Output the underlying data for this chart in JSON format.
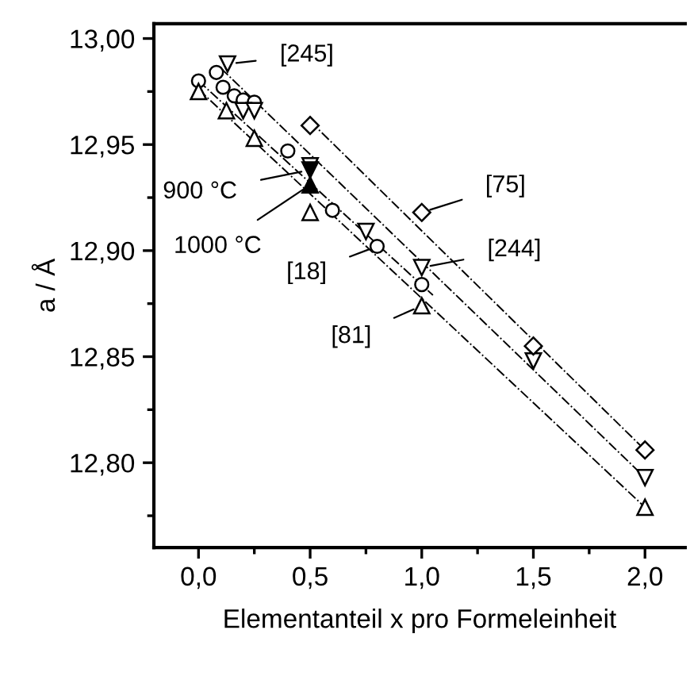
{
  "chart_data": {
    "type": "scatter",
    "xlabel": "Elementanteil x pro Formeleinheit",
    "ylabel": "a / Å",
    "xlim": [
      -0.2,
      2.18
    ],
    "ylim": [
      12.76,
      13.007
    ],
    "xticks": [
      {
        "value": 0,
        "label": "0,0"
      },
      {
        "value": 0.5,
        "label": "0,5"
      },
      {
        "value": 1.0,
        "label": "1,0"
      },
      {
        "value": 1.5,
        "label": "1,5"
      },
      {
        "value": 2.0,
        "label": "2,0"
      }
    ],
    "yticks": [
      {
        "value": 12.8,
        "label": "12,80"
      },
      {
        "value": 12.85,
        "label": "12,85"
      },
      {
        "value": 12.9,
        "label": "12,90"
      },
      {
        "value": 12.95,
        "label": "12,95"
      },
      {
        "value": 13.0,
        "label": "13,00"
      }
    ],
    "grid": false,
    "legend": false,
    "series": [
      {
        "marker": "circle",
        "color": "#ffffff",
        "x": [
          0,
          0.08,
          0.11,
          0.16,
          0.2,
          0.25,
          0.4,
          0.6,
          0.8,
          1.0
        ],
        "values": [
          12.98,
          12.984,
          12.977,
          12.973,
          12.971,
          12.97,
          12.947,
          12.919,
          12.902,
          12.884
        ]
      },
      {
        "marker": "triangle_down",
        "color": "#ffffff",
        "x": [
          0.13,
          0.2,
          0.25,
          0.5,
          0.75,
          1.0,
          1.5,
          2.0
        ],
        "values": [
          12.988,
          12.966,
          12.966,
          12.94,
          12.909,
          12.892,
          12.848,
          12.793
        ]
      },
      {
        "marker": "triangle",
        "color": "#ffffff",
        "x": [
          0,
          0.125,
          0.25,
          0.5,
          1.0,
          2.0
        ],
        "values": [
          12.975,
          12.966,
          12.953,
          12.918,
          12.874,
          12.779
        ]
      },
      {
        "marker": "diamond",
        "color": "#ffffff",
        "x": [
          0.5,
          1.0,
          1.5,
          2.0
        ],
        "values": [
          12.959,
          12.918,
          12.855,
          12.806
        ]
      },
      {
        "marker": "triangle_down",
        "color": "#000000",
        "x": [
          0.5
        ],
        "values": [
          12.938
        ]
      },
      {
        "marker": "triangle",
        "color": "#000000",
        "x": [
          0.5
        ],
        "values": [
          12.931
        ]
      },
      {
        "type": "line",
        "line_style": "dashdot",
        "color": "#000000",
        "x": [
          0.5,
          2.0
        ],
        "values": [
          12.961,
          12.806
        ]
      },
      {
        "type": "line",
        "line_style": "dashdot",
        "color": "#000000",
        "x": [
          0.1,
          2.0
        ],
        "values": [
          12.986,
          12.793
        ]
      },
      {
        "type": "line",
        "line_style": "dashdot",
        "color": "#000000",
        "x": [
          0,
          1.05
        ],
        "values": [
          12.98,
          12.879
        ]
      },
      {
        "type": "line",
        "line_style": "dashdot",
        "color": "#000000",
        "x": [
          0,
          2.0
        ],
        "values": [
          12.976,
          12.779
        ]
      }
    ],
    "annotations": [
      {
        "text": "[245]",
        "x": 0.13,
        "y": 12.988
      },
      {
        "text": "[75]",
        "x": 1.0,
        "y": 12.918
      },
      {
        "text": "[244]",
        "x": 1.0,
        "y": 12.892
      },
      {
        "text": "[18]",
        "x": 0.8,
        "y": 12.902
      },
      {
        "text": "[81]",
        "x": 1.0,
        "y": 12.874
      },
      {
        "text": "900 °C",
        "x": 0.5,
        "y": 12.938
      },
      {
        "text": "1000 °C",
        "x": 0.5,
        "y": 12.931
      }
    ]
  }
}
